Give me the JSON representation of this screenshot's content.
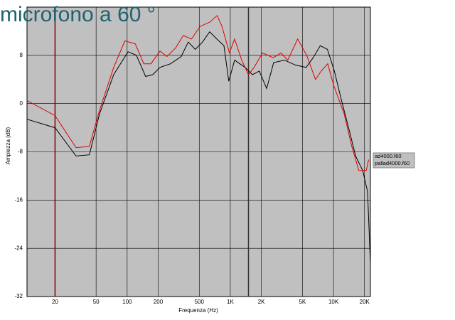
{
  "chart_data": {
    "type": "line",
    "title": "microfono a 60 °",
    "xlabel": "Frequenza (Hz)",
    "ylabel": "Ampiezza (dB)",
    "xscale": "log",
    "grid": true,
    "legend": "right",
    "xlim": [
      10.7,
      22800
    ],
    "ylim": [
      -32,
      16
    ],
    "xticks": [
      20,
      50,
      100,
      200,
      500,
      {
        "value": 1000,
        "label": "1K"
      },
      {
        "value": 2000,
        "label": "2K"
      },
      {
        "value": 5000,
        "label": "5K"
      },
      {
        "value": 10000,
        "label": "10K"
      },
      {
        "value": 20000,
        "label": "20K"
      }
    ],
    "yticks": [
      8,
      0,
      -8,
      -16,
      -24,
      -32
    ],
    "vlines": [
      {
        "x": 20,
        "color": "#7a0000"
      },
      {
        "x": 1500,
        "color": "#333333"
      }
    ],
    "series": [
      {
        "name": "ad4000.f60",
        "color": "#000000",
        "x": [
          10.7,
          20,
          32,
          43,
          54,
          74,
          102,
          123,
          151,
          177,
          208,
          263,
          334,
          391,
          458,
          537,
          631,
          740,
          867,
          967,
          1100,
          1390,
          1640,
          1910,
          2250,
          2630,
          3350,
          4270,
          5430,
          6350,
          7450,
          8730,
          10200,
          11900,
          14000,
          16400,
          19200,
          21400,
          22800
        ],
        "values": [
          -2.6,
          -4,
          -8.7,
          -8.5,
          -1.7,
          4.8,
          8.6,
          8,
          4.5,
          4.8,
          6,
          6.6,
          7.8,
          10.2,
          9,
          10.2,
          11.9,
          10.7,
          9.6,
          3.7,
          7.2,
          6,
          4.8,
          5.4,
          2.5,
          6.8,
          7.2,
          6.4,
          6,
          7.6,
          9.6,
          9,
          5.4,
          0.7,
          -4,
          -8.7,
          -11.1,
          -14.6,
          -26.4
        ]
      },
      {
        "name": "pallad4000.f60",
        "color": "#e00000",
        "x": [
          10.7,
          20,
          32,
          43,
          54,
          74,
          95,
          120,
          145,
          170,
          208,
          243,
          294,
          350,
          420,
          510,
          630,
          745,
          830,
          980,
          1100,
          1290,
          1500,
          1700,
          2050,
          2600,
          3100,
          3600,
          4500,
          5500,
          6700,
          7600,
          8800,
          10000,
          12700,
          15000,
          17600,
          20800,
          21900
        ],
        "values": [
          0.5,
          -2,
          -7.3,
          -7.1,
          -1.1,
          6,
          10.4,
          9.9,
          6.6,
          6.6,
          8.7,
          7.8,
          9.2,
          11.3,
          10.7,
          12.8,
          13.5,
          14.6,
          12.8,
          8.4,
          10.7,
          7.2,
          4.8,
          6,
          8.4,
          7.6,
          8.4,
          7.2,
          10.7,
          8,
          4,
          5.4,
          6.6,
          3.1,
          -1.7,
          -7,
          -11.1,
          -11.1,
          -9.3
        ]
      }
    ]
  }
}
